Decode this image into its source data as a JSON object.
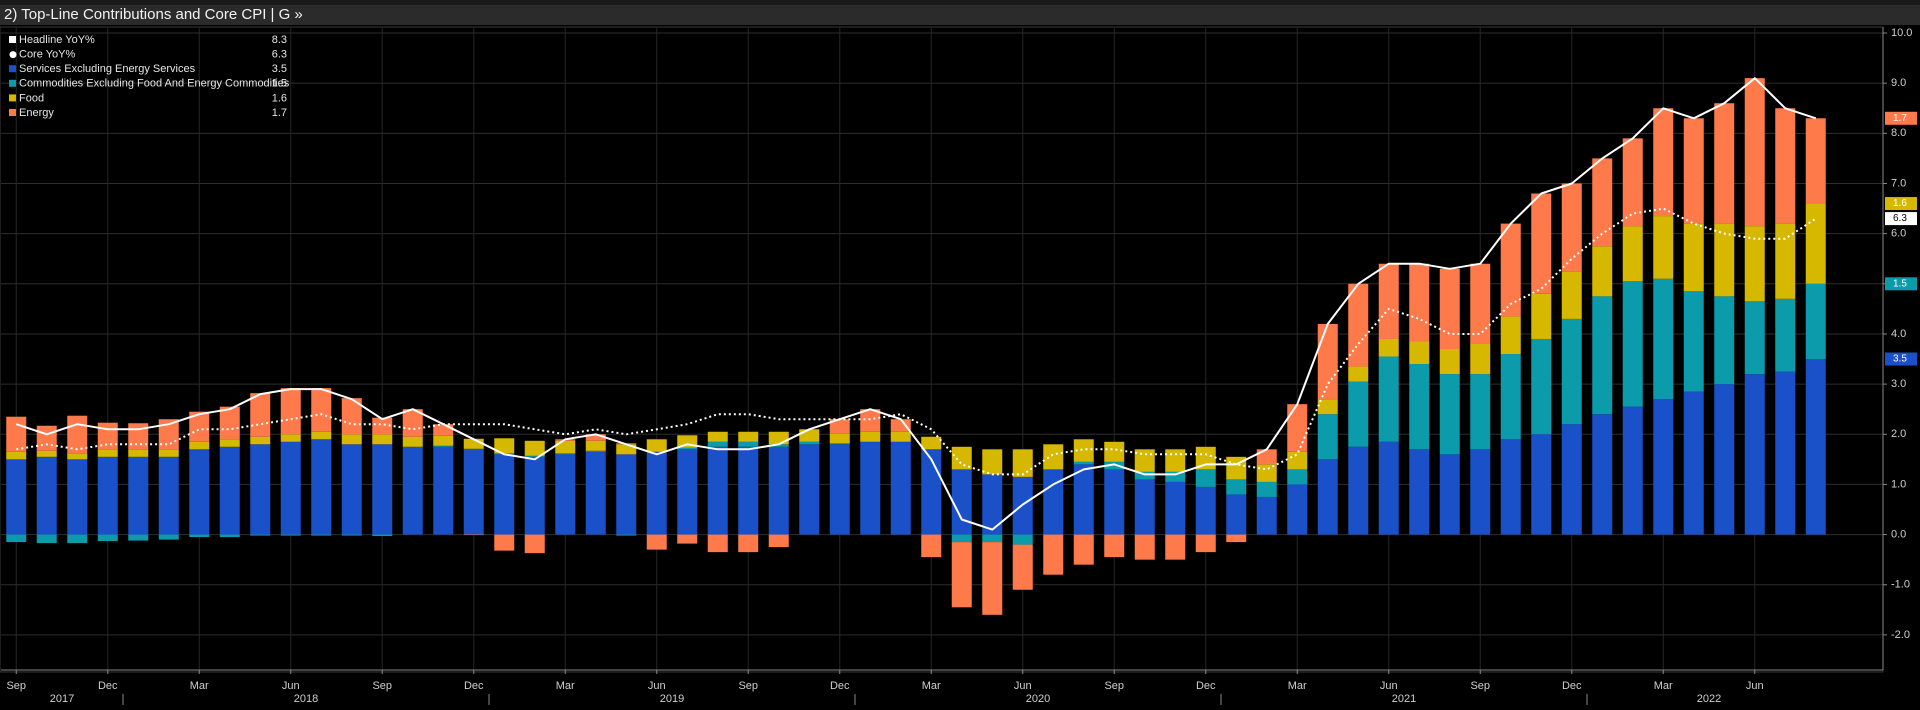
{
  "chart_data": {
    "type": "bar",
    "title": "2) Top-Line Contributions and Core CPI | G »",
    "categories": [
      "Sep",
      null,
      null,
      "Dec",
      null,
      null,
      "Mar",
      null,
      null,
      "Jun",
      null,
      null,
      "Sep",
      null,
      null,
      "Dec",
      null,
      null,
      "Mar",
      null,
      null,
      "Jun",
      null,
      null,
      "Sep",
      null,
      null,
      "Dec",
      null,
      null,
      "Mar",
      null,
      null,
      "Jun",
      null,
      null,
      "Sep",
      null,
      null,
      "Dec",
      null,
      null,
      "Mar",
      null,
      null,
      "Jun",
      null,
      null,
      "Sep",
      null,
      null,
      "Dec",
      null,
      null,
      "Mar",
      null,
      null,
      "Jun",
      null,
      null
    ],
    "years": [
      {
        "label": "2017",
        "start": 0
      },
      {
        "label": "2018",
        "start": 4
      },
      {
        "label": "2019",
        "start": 16
      },
      {
        "label": "2020",
        "start": 28
      },
      {
        "label": "2021",
        "start": 40
      },
      {
        "label": "2022",
        "start": 52
      }
    ],
    "series": [
      {
        "name": "Headline YoY%",
        "type": "line",
        "style": "solid",
        "color": "#ffffff",
        "values": [
          2.2,
          2.0,
          2.2,
          2.1,
          2.1,
          2.2,
          2.4,
          2.5,
          2.8,
          2.9,
          2.9,
          2.7,
          2.3,
          2.5,
          2.2,
          1.9,
          1.6,
          1.5,
          1.9,
          2.0,
          1.8,
          1.6,
          1.8,
          1.7,
          1.7,
          1.8,
          2.1,
          2.3,
          2.5,
          2.3,
          1.5,
          0.3,
          0.1,
          0.6,
          1.0,
          1.3,
          1.4,
          1.2,
          1.2,
          1.4,
          1.4,
          1.7,
          2.6,
          4.2,
          5.0,
          5.4,
          5.4,
          5.3,
          5.4,
          6.2,
          6.8,
          7.0,
          7.5,
          7.9,
          8.5,
          8.3,
          8.6,
          9.1,
          8.5,
          8.3
        ]
      },
      {
        "name": "Core YoY%",
        "type": "line",
        "style": "dotted",
        "color": "#ffffff",
        "values": [
          1.7,
          1.8,
          1.7,
          1.8,
          1.8,
          1.8,
          2.1,
          2.1,
          2.2,
          2.3,
          2.4,
          2.2,
          2.2,
          2.1,
          2.2,
          2.2,
          2.2,
          2.1,
          2.0,
          2.1,
          2.0,
          2.1,
          2.2,
          2.4,
          2.4,
          2.3,
          2.3,
          2.3,
          2.3,
          2.4,
          2.1,
          1.4,
          1.2,
          1.2,
          1.6,
          1.7,
          1.7,
          1.6,
          1.6,
          1.6,
          1.4,
          1.3,
          1.6,
          3.0,
          3.8,
          4.5,
          4.3,
          4.0,
          4.0,
          4.6,
          4.9,
          5.5,
          6.0,
          6.4,
          6.5,
          6.2,
          6.0,
          5.9,
          5.9,
          6.3
        ]
      },
      {
        "name": "Services Excluding Energy Services",
        "type": "bar",
        "color": "#1a50c8",
        "values": [
          1.5,
          1.55,
          1.5,
          1.55,
          1.55,
          1.55,
          1.7,
          1.75,
          1.8,
          1.85,
          1.9,
          1.8,
          1.8,
          1.75,
          1.75,
          1.7,
          1.6,
          1.55,
          1.6,
          1.65,
          1.6,
          1.65,
          1.7,
          1.75,
          1.75,
          1.75,
          1.8,
          1.8,
          1.85,
          1.85,
          1.7,
          1.3,
          1.2,
          1.15,
          1.3,
          1.4,
          1.3,
          1.1,
          1.05,
          0.95,
          0.8,
          0.75,
          1.0,
          1.5,
          1.75,
          1.85,
          1.7,
          1.6,
          1.7,
          1.9,
          2.0,
          2.2,
          2.4,
          2.55,
          2.7,
          2.85,
          3.0,
          3.2,
          3.25,
          3.5
        ]
      },
      {
        "name": "Commodities Excluding Food And Energy Commodities",
        "type": "bar",
        "color": "#0b9bab",
        "values": [
          -0.15,
          -0.17,
          -0.17,
          -0.13,
          -0.12,
          -0.1,
          -0.05,
          -0.05,
          -0.02,
          -0.02,
          -0.02,
          -0.02,
          -0.03,
          0,
          0.02,
          0.01,
          0.02,
          0.02,
          0.02,
          0.02,
          -0.02,
          0,
          0.03,
          0.1,
          0.1,
          0.05,
          0.05,
          0.02,
          0,
          0,
          0,
          -0.15,
          -0.15,
          -0.2,
          0,
          0.05,
          0.15,
          0.15,
          0.2,
          0.35,
          0.3,
          0.3,
          0.3,
          0.9,
          1.3,
          1.7,
          1.7,
          1.6,
          1.5,
          1.7,
          1.9,
          2.1,
          2.35,
          2.5,
          2.4,
          2.0,
          1.75,
          1.45,
          1.45,
          1.5
        ]
      },
      {
        "name": "Food",
        "type": "bar",
        "color": "#d6b800",
        "values": [
          0.15,
          0.12,
          0.12,
          0.15,
          0.15,
          0.15,
          0.15,
          0.15,
          0.15,
          0.15,
          0.15,
          0.2,
          0.2,
          0.2,
          0.2,
          0.2,
          0.3,
          0.3,
          0.25,
          0.2,
          0.2,
          0.25,
          0.25,
          0.2,
          0.2,
          0.25,
          0.25,
          0.2,
          0.2,
          0.2,
          0.25,
          0.45,
          0.5,
          0.55,
          0.5,
          0.45,
          0.4,
          0.45,
          0.45,
          0.45,
          0.45,
          0.35,
          0.35,
          0.3,
          0.3,
          0.35,
          0.45,
          0.5,
          0.6,
          0.75,
          0.9,
          0.95,
          1.0,
          1.1,
          1.25,
          1.35,
          1.45,
          1.5,
          1.5,
          1.6
        ]
      },
      {
        "name": "Energy",
        "type": "bar",
        "color": "#ff7a4a",
        "values": [
          0.7,
          0.5,
          0.75,
          0.53,
          0.52,
          0.6,
          0.6,
          0.65,
          0.87,
          0.92,
          0.87,
          0.72,
          0.33,
          0.55,
          0.23,
          -0.01,
          -0.32,
          -0.37,
          0.03,
          0.13,
          0.02,
          -0.3,
          -0.18,
          -0.35,
          -0.35,
          -0.25,
          0,
          0.28,
          0.45,
          0.25,
          -0.45,
          -1.3,
          -1.45,
          -0.9,
          -0.8,
          -0.6,
          -0.45,
          -0.5,
          -0.5,
          -0.35,
          -0.15,
          0.3,
          0.95,
          1.5,
          1.65,
          1.5,
          1.55,
          1.6,
          1.6,
          1.85,
          2.0,
          1.75,
          1.75,
          1.75,
          2.15,
          2.1,
          2.4,
          2.95,
          2.3,
          1.7
        ]
      }
    ],
    "ylim": [
      -2.7,
      10.1
    ],
    "yticks": [
      {
        "value": -2,
        "label": "-2.0"
      },
      {
        "value": -1,
        "label": "-1.0"
      },
      {
        "value": 0,
        "label": "0.0"
      },
      {
        "value": 1,
        "label": "1.0"
      },
      {
        "value": 2,
        "label": "2.0"
      },
      {
        "value": 3,
        "label": "3.0"
      },
      {
        "value": 4,
        "label": "4.0"
      },
      {
        "value": 5,
        "label": "5.0"
      },
      {
        "value": 6,
        "label": "6.0"
      },
      {
        "value": 7,
        "label": "7.0"
      },
      {
        "value": 8,
        "label": "8.0"
      },
      {
        "value": 9,
        "label": "9.0"
      },
      {
        "value": 10,
        "label": "10.0"
      }
    ],
    "grid": true,
    "legend": "top-left"
  }
}
